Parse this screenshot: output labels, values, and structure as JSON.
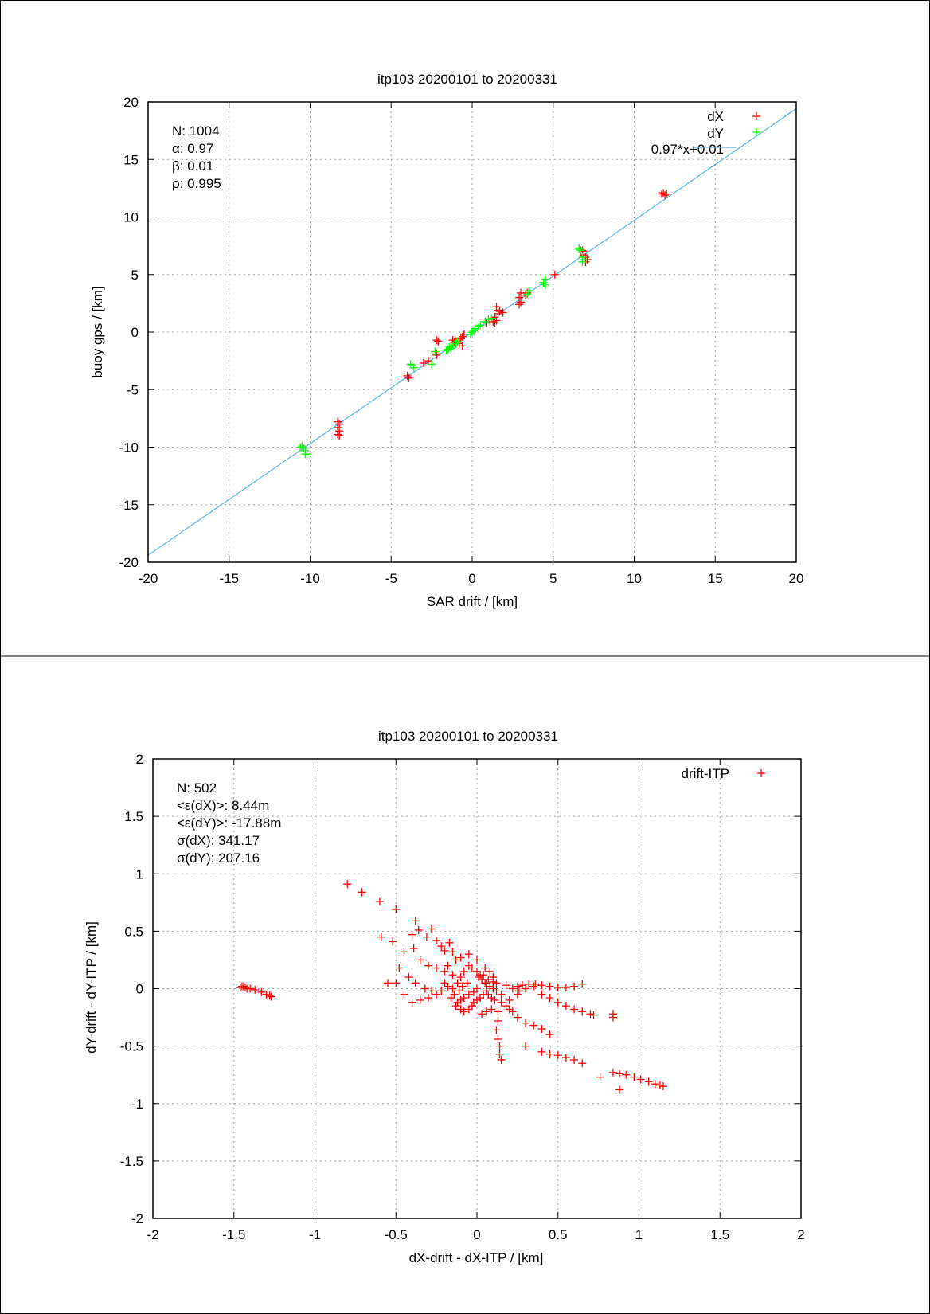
{
  "chart_data": [
    {
      "type": "scatter",
      "title": "itp103 20200101 to 20200331",
      "xlabel": "SAR drift / [km]",
      "ylabel": "buoy gps / [km]",
      "xlim": [
        -20,
        20
      ],
      "ylim": [
        -20,
        20
      ],
      "xticks": [
        -20,
        -15,
        -10,
        -5,
        0,
        5,
        10,
        15,
        20
      ],
      "yticks": [
        -20,
        -15,
        -10,
        -5,
        0,
        5,
        10,
        15,
        20
      ],
      "grid": true,
      "legend_position": "top-right",
      "stats": [
        "N: 1004",
        "α: 0.97",
        "β: 0.01",
        "ρ: 0.995"
      ],
      "series": [
        {
          "name": "dX",
          "color": "#ff0000",
          "marker": "plus",
          "points": [
            [
              11.8,
              12.1
            ],
            [
              11.7,
              12.0
            ],
            [
              11.9,
              11.9
            ],
            [
              12.0,
              12.0
            ],
            [
              6.9,
              7.0
            ],
            [
              6.9,
              6.7
            ],
            [
              7.0,
              6.5
            ],
            [
              7.1,
              6.3
            ],
            [
              6.8,
              7.1
            ],
            [
              7.0,
              6.1
            ],
            [
              5.1,
              5.0
            ],
            [
              3.4,
              3.4
            ],
            [
              3.3,
              3.2
            ],
            [
              3.0,
              3.4
            ],
            [
              2.9,
              3.0
            ],
            [
              3.0,
              2.6
            ],
            [
              2.9,
              2.4
            ],
            [
              1.9,
              1.7
            ],
            [
              1.7,
              1.8
            ],
            [
              1.6,
              1.6
            ],
            [
              1.5,
              2.2
            ],
            [
              1.4,
              1.3
            ],
            [
              1.5,
              1.0
            ],
            [
              1.3,
              0.9
            ],
            [
              1.1,
              0.9
            ],
            [
              0.9,
              0.8
            ],
            [
              1.4,
              0.8
            ],
            [
              1.6,
              1.9
            ],
            [
              -0.6,
              -0.4
            ],
            [
              -0.5,
              -0.2
            ],
            [
              -0.7,
              -0.6
            ],
            [
              -0.8,
              -1.0
            ],
            [
              -0.6,
              -1.2
            ],
            [
              -1.0,
              -0.8
            ],
            [
              -1.2,
              -0.7
            ],
            [
              -1.1,
              -0.9
            ],
            [
              -2.2,
              -0.7
            ],
            [
              -2.1,
              -0.8
            ],
            [
              -2.2,
              -1.9
            ],
            [
              -2.2,
              -2.0
            ],
            [
              -2.7,
              -2.5
            ],
            [
              -3.0,
              -2.7
            ],
            [
              -4.0,
              -3.8
            ],
            [
              -3.9,
              -4.0
            ],
            [
              -8.3,
              -7.8
            ],
            [
              -8.2,
              -8.0
            ],
            [
              -8.3,
              -8.3
            ],
            [
              -8.2,
              -8.6
            ],
            [
              -8.3,
              -8.9
            ],
            [
              -8.2,
              -9.0
            ]
          ]
        },
        {
          "name": "dY",
          "color": "#00ff00",
          "marker": "plus",
          "points": [
            [
              6.6,
              7.3
            ],
            [
              6.7,
              7.1
            ],
            [
              6.8,
              6.5
            ],
            [
              6.9,
              6.3
            ],
            [
              6.8,
              6.1
            ],
            [
              6.6,
              7.2
            ],
            [
              4.5,
              4.6
            ],
            [
              4.4,
              4.3
            ],
            [
              4.5,
              4.1
            ],
            [
              3.5,
              3.6
            ],
            [
              3.4,
              3.3
            ],
            [
              1.2,
              1.2
            ],
            [
              1.0,
              1.1
            ],
            [
              0.8,
              0.9
            ],
            [
              0.5,
              0.6
            ],
            [
              0.4,
              0.5
            ],
            [
              0.2,
              0.3
            ],
            [
              0.1,
              0.1
            ],
            [
              0.0,
              0.0
            ],
            [
              -0.1,
              -0.2
            ],
            [
              -0.9,
              -0.8
            ],
            [
              -1.0,
              -1.0
            ],
            [
              -1.2,
              -1.2
            ],
            [
              -1.4,
              -1.3
            ],
            [
              -1.5,
              -1.5
            ],
            [
              -1.6,
              -1.6
            ],
            [
              -1.3,
              -1.4
            ],
            [
              -2.3,
              -1.7
            ],
            [
              -3.7,
              -2.9
            ],
            [
              -3.8,
              -2.8
            ],
            [
              -3.6,
              -3.1
            ],
            [
              -2.5,
              -2.8
            ],
            [
              -10.5,
              -9.9
            ],
            [
              -10.4,
              -10.1
            ],
            [
              -10.3,
              -10.3
            ],
            [
              -10.3,
              -10.6
            ],
            [
              -10.2,
              -10.6
            ],
            [
              -10.6,
              -10.0
            ]
          ]
        },
        {
          "name": "0.97*x+0.01",
          "type": "line",
          "color": "#56b4e9",
          "slope": 0.97,
          "intercept": 0.01,
          "x_range": [
            -20,
            20
          ]
        }
      ]
    },
    {
      "type": "scatter",
      "title": "itp103 20200101 to 20200331",
      "xlabel": "dX-drift - dX-ITP / [km]",
      "ylabel": "dY-drift - dY-ITP / [km]",
      "xlim": [
        -2,
        2
      ],
      "ylim": [
        -2,
        2
      ],
      "xticks": [
        -2,
        -1.5,
        -1,
        -0.5,
        0,
        0.5,
        1,
        1.5,
        2
      ],
      "yticks": [
        -2,
        -1.5,
        -1,
        -0.5,
        0,
        0.5,
        1,
        1.5,
        2
      ],
      "grid": true,
      "legend_position": "top-right",
      "stats": [
        "N: 502",
        "<ε(dX)>:  8.44m",
        "<ε(dY)>: -17.88m",
        "σ(dX):  341.17",
        "σ(dY):  207.16"
      ],
      "series": [
        {
          "name": "drift-ITP",
          "color": "#ff0000",
          "marker": "plus",
          "points": [
            [
              -1.46,
              0.01
            ],
            [
              -1.45,
              0.02
            ],
            [
              -1.44,
              0.02
            ],
            [
              -1.43,
              0.01
            ],
            [
              -1.42,
              0.0
            ],
            [
              -1.4,
              0.0
            ],
            [
              -1.37,
              -0.01
            ],
            [
              -1.33,
              -0.03
            ],
            [
              -1.3,
              -0.05
            ],
            [
              -1.28,
              -0.06
            ],
            [
              -1.27,
              -0.07
            ],
            [
              -0.8,
              0.91
            ],
            [
              -0.71,
              0.84
            ],
            [
              -0.6,
              0.76
            ],
            [
              -0.5,
              0.69
            ],
            [
              -0.59,
              0.45
            ],
            [
              -0.52,
              0.41
            ],
            [
              -0.45,
              0.32
            ],
            [
              -0.39,
              0.35
            ],
            [
              -0.4,
              0.47
            ],
            [
              -0.38,
              0.59
            ],
            [
              -0.36,
              0.51
            ],
            [
              -0.31,
              0.45
            ],
            [
              -0.28,
              0.52
            ],
            [
              -0.25,
              0.42
            ],
            [
              -0.22,
              0.37
            ],
            [
              -0.2,
              0.33
            ],
            [
              -0.17,
              0.4
            ],
            [
              -0.15,
              0.32
            ],
            [
              -0.13,
              0.25
            ],
            [
              -0.1,
              0.27
            ],
            [
              -0.05,
              0.3
            ],
            [
              0.0,
              0.25
            ],
            [
              -0.35,
              0.25
            ],
            [
              -0.3,
              0.2
            ],
            [
              -0.25,
              0.18
            ],
            [
              -0.2,
              0.15
            ],
            [
              -0.18,
              0.2
            ],
            [
              -0.15,
              0.12
            ],
            [
              -0.12,
              0.05
            ],
            [
              -0.1,
              0.1
            ],
            [
              -0.08,
              0.15
            ],
            [
              -0.05,
              0.2
            ],
            [
              -0.03,
              0.18
            ],
            [
              0.0,
              0.15
            ],
            [
              0.02,
              0.12
            ],
            [
              0.05,
              0.18
            ],
            [
              0.08,
              0.15
            ],
            [
              0.1,
              0.1
            ],
            [
              0.12,
              0.05
            ],
            [
              0.03,
              0.08
            ],
            [
              0.06,
              0.05
            ],
            [
              0.08,
              0.02
            ],
            [
              0.1,
              0.0
            ],
            [
              0.12,
              -0.02
            ],
            [
              0.15,
              -0.05
            ],
            [
              0.0,
              0.0
            ],
            [
              -0.02,
              -0.03
            ],
            [
              -0.05,
              -0.05
            ],
            [
              -0.08,
              -0.08
            ],
            [
              -0.1,
              -0.1
            ],
            [
              -0.12,
              -0.12
            ],
            [
              -0.13,
              -0.15
            ],
            [
              -0.1,
              -0.18
            ],
            [
              -0.08,
              -0.2
            ],
            [
              -0.05,
              -0.18
            ],
            [
              -0.03,
              -0.15
            ],
            [
              0.0,
              -0.1
            ],
            [
              0.02,
              -0.08
            ],
            [
              0.04,
              -0.05
            ],
            [
              0.06,
              -0.02
            ],
            [
              -0.15,
              0.0
            ],
            [
              -0.18,
              0.02
            ],
            [
              -0.2,
              0.05
            ],
            [
              -0.22,
              -0.02
            ],
            [
              -0.25,
              -0.05
            ],
            [
              -0.3,
              -0.08
            ],
            [
              -0.35,
              -0.1
            ],
            [
              -0.4,
              -0.12
            ],
            [
              -0.45,
              -0.05
            ],
            [
              -0.5,
              0.05
            ],
            [
              -0.55,
              0.05
            ],
            [
              -0.48,
              0.18
            ],
            [
              -0.42,
              0.1
            ],
            [
              -0.38,
              0.05
            ],
            [
              -0.32,
              0.0
            ],
            [
              -0.28,
              -0.02
            ],
            [
              0.13,
              -0.2
            ],
            [
              0.13,
              -0.28
            ],
            [
              0.12,
              -0.36
            ],
            [
              0.13,
              -0.44
            ],
            [
              0.14,
              -0.5
            ],
            [
              0.14,
              -0.57
            ],
            [
              0.15,
              -0.62
            ],
            [
              0.2,
              -0.1
            ],
            [
              0.25,
              -0.05
            ],
            [
              0.3,
              0.0
            ],
            [
              0.35,
              0.02
            ],
            [
              0.4,
              0.03
            ],
            [
              0.45,
              0.02
            ],
            [
              0.5,
              0.01
            ],
            [
              0.55,
              0.01
            ],
            [
              0.6,
              0.02
            ],
            [
              0.65,
              0.04
            ],
            [
              0.25,
              0.02
            ],
            [
              0.28,
              0.03
            ],
            [
              0.32,
              0.04
            ],
            [
              0.36,
              0.04
            ],
            [
              0.4,
              -0.05
            ],
            [
              0.45,
              -0.08
            ],
            [
              0.5,
              -0.12
            ],
            [
              0.55,
              -0.15
            ],
            [
              0.6,
              -0.18
            ],
            [
              0.65,
              -0.2
            ],
            [
              0.7,
              -0.22
            ],
            [
              0.72,
              -0.23
            ],
            [
              0.84,
              -0.22
            ],
            [
              0.84,
              -0.25
            ],
            [
              0.25,
              -0.25
            ],
            [
              0.3,
              -0.3
            ],
            [
              0.35,
              -0.32
            ],
            [
              0.4,
              -0.35
            ],
            [
              0.45,
              -0.4
            ],
            [
              0.3,
              -0.5
            ],
            [
              0.4,
              -0.55
            ],
            [
              0.45,
              -0.57
            ],
            [
              0.5,
              -0.58
            ],
            [
              0.55,
              -0.6
            ],
            [
              0.6,
              -0.62
            ],
            [
              0.65,
              -0.65
            ],
            [
              0.76,
              -0.77
            ],
            [
              0.84,
              -0.73
            ],
            [
              0.88,
              -0.74
            ],
            [
              0.92,
              -0.75
            ],
            [
              0.97,
              -0.77
            ],
            [
              1.01,
              -0.79
            ],
            [
              1.06,
              -0.81
            ],
            [
              1.1,
              -0.83
            ],
            [
              1.13,
              -0.84
            ],
            [
              1.15,
              -0.85
            ],
            [
              0.88,
              -0.88
            ],
            [
              0.05,
              0.05
            ],
            [
              0.07,
              -0.05
            ],
            [
              0.09,
              -0.08
            ],
            [
              0.11,
              -0.1
            ],
            [
              0.15,
              -0.12
            ],
            [
              0.18,
              -0.15
            ],
            [
              0.2,
              -0.18
            ],
            [
              0.22,
              -0.2
            ],
            [
              -0.06,
              0.05
            ],
            [
              -0.09,
              0.02
            ],
            [
              -0.11,
              -0.02
            ],
            [
              -0.14,
              -0.05
            ],
            [
              -0.16,
              -0.08
            ],
            [
              0.03,
              -0.22
            ],
            [
              0.06,
              -0.2
            ],
            [
              0.09,
              -0.18
            ],
            [
              -0.02,
              -0.12
            ],
            [
              0.01,
              0.1
            ],
            [
              0.04,
              0.12
            ],
            [
              0.07,
              0.08
            ],
            [
              0.1,
              0.06
            ],
            [
              0.18,
              0.03
            ],
            [
              0.22,
              0.0
            ],
            [
              0.26,
              -0.02
            ]
          ]
        }
      ]
    }
  ]
}
